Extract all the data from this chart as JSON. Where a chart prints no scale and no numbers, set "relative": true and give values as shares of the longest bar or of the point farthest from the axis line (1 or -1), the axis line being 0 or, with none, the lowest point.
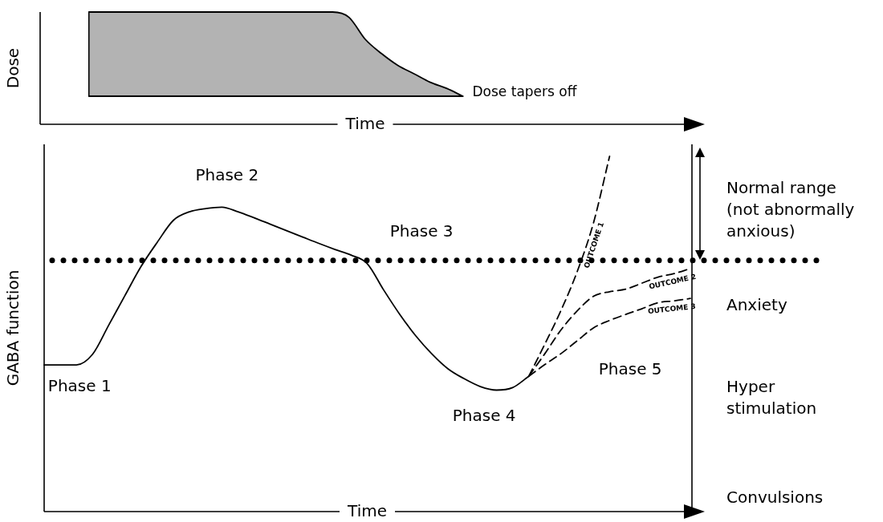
{
  "chart_data": [
    {
      "type": "area",
      "relative": true,
      "ylabel": "Dose",
      "xlabel": "Time",
      "marker": "none",
      "categories": [
        null,
        null,
        null,
        null,
        null,
        null,
        null,
        null,
        null,
        null,
        null,
        null,
        null,
        null,
        null,
        null,
        null,
        null,
        null,
        null,
        null,
        null,
        null,
        null,
        null,
        null,
        null,
        null,
        null,
        null,
        null,
        null,
        null,
        null,
        null,
        null,
        null,
        null,
        null,
        null,
        null
      ],
      "series": [
        {
          "type": "line",
          "color": "#000000",
          "values": [
            null,
            null,
            null,
            0.25,
            0.25,
            0.25,
            0.25,
            0.25,
            0.25,
            0.25,
            0.25,
            0.25,
            0.25,
            0.25,
            0.25,
            0.25,
            0.25,
            0.25,
            0.25,
            0.25,
            0.25,
            0.25,
            0.25,
            0.25,
            0.25,
            0.25,
            0.25,
            null,
            null,
            null,
            null,
            null,
            null,
            null,
            null,
            null,
            null,
            null,
            null,
            null,
            null
          ]
        },
        {
          "color": "#b3b3b3",
          "values": [
            null,
            null,
            null,
            1,
            1,
            1,
            1,
            1,
            1,
            1,
            1,
            1,
            1,
            1,
            1,
            1,
            1,
            1,
            1,
            0.953,
            0.757,
            0.63,
            0.525,
            0.45,
            0.374,
            0.32,
            0.25,
            null,
            null,
            null,
            null,
            null,
            null,
            null,
            null,
            null,
            null,
            null,
            null,
            null,
            null
          ]
        }
      ],
      "annotations": [
        "Dose tapers off"
      ]
    },
    {
      "type": "line",
      "relative": true,
      "ylabel": "GABA function",
      "xlabel": "Time",
      "marker": "none",
      "categories": [
        null,
        null,
        null,
        null,
        null,
        null,
        null,
        null,
        null,
        null,
        null,
        null,
        null,
        null,
        null,
        null,
        null,
        null,
        null,
        null,
        null,
        null,
        null,
        null,
        null,
        null,
        null,
        null,
        null,
        null,
        null,
        null,
        null,
        null,
        null,
        null,
        null,
        null,
        null,
        null,
        null
      ],
      "series": [
        {
          "color": "#000000",
          "line_style": "solid",
          "values": [
            0.413,
            0.413,
            0.413,
            0.443,
            0.525,
            0.608,
            0.69,
            0.758,
            0.82,
            0.844,
            0.853,
            0.857,
            0.844,
            0.827,
            0.809,
            0.791,
            0.773,
            0.755,
            0.738,
            0.722,
            0.698,
            0.625,
            0.556,
            0.495,
            0.444,
            0.402,
            0.374,
            0.352,
            0.342,
            0.349,
            0.381,
            null,
            null,
            null,
            null,
            null,
            null,
            null,
            null,
            null,
            null
          ]
        },
        {
          "name": "OUTCOME 1",
          "color": "#000000",
          "line_style": "dashed",
          "values": [
            null,
            null,
            null,
            null,
            null,
            null,
            null,
            null,
            null,
            null,
            null,
            null,
            null,
            null,
            null,
            null,
            null,
            null,
            null,
            null,
            null,
            null,
            null,
            null,
            null,
            null,
            null,
            null,
            null,
            null,
            0.381,
            0.472,
            0.567,
            0.676,
            0.812,
            1.0,
            null,
            null,
            null,
            null,
            null
          ]
        },
        {
          "name": "OUTCOME 2",
          "color": "#000000",
          "line_style": "dashed",
          "values": [
            null,
            null,
            null,
            null,
            null,
            null,
            null,
            null,
            null,
            null,
            null,
            null,
            null,
            null,
            null,
            null,
            null,
            null,
            null,
            null,
            null,
            null,
            null,
            null,
            null,
            null,
            null,
            null,
            null,
            null,
            0.381,
            0.445,
            0.512,
            0.565,
            0.606,
            0.619,
            0.626,
            0.643,
            0.66,
            0.67,
            0.684
          ]
        },
        {
          "name": "OUTCOME 3",
          "color": "#000000",
          "line_style": "dashed",
          "values": [
            null,
            null,
            null,
            null,
            null,
            null,
            null,
            null,
            null,
            null,
            null,
            null,
            null,
            null,
            null,
            null,
            null,
            null,
            null,
            null,
            null,
            null,
            null,
            null,
            null,
            null,
            null,
            null,
            null,
            null,
            0.381,
            0.414,
            0.445,
            0.481,
            0.517,
            0.538,
            0.555,
            0.571,
            0.588,
            0.593,
            0.6
          ]
        }
      ],
      "ref_lines": [
        {
          "axis": "y",
          "value": 0.707,
          "line_style": "dotted",
          "color": "#000000"
        }
      ],
      "annotations": [
        "Phase 1",
        "Phase 2",
        "Phase 3",
        "Phase 4",
        "Phase 5",
        "Normal range\n(not abnormally\nanxious)",
        "Anxiety",
        "Hyper\nstimulation",
        "Convulsions"
      ]
    }
  ]
}
